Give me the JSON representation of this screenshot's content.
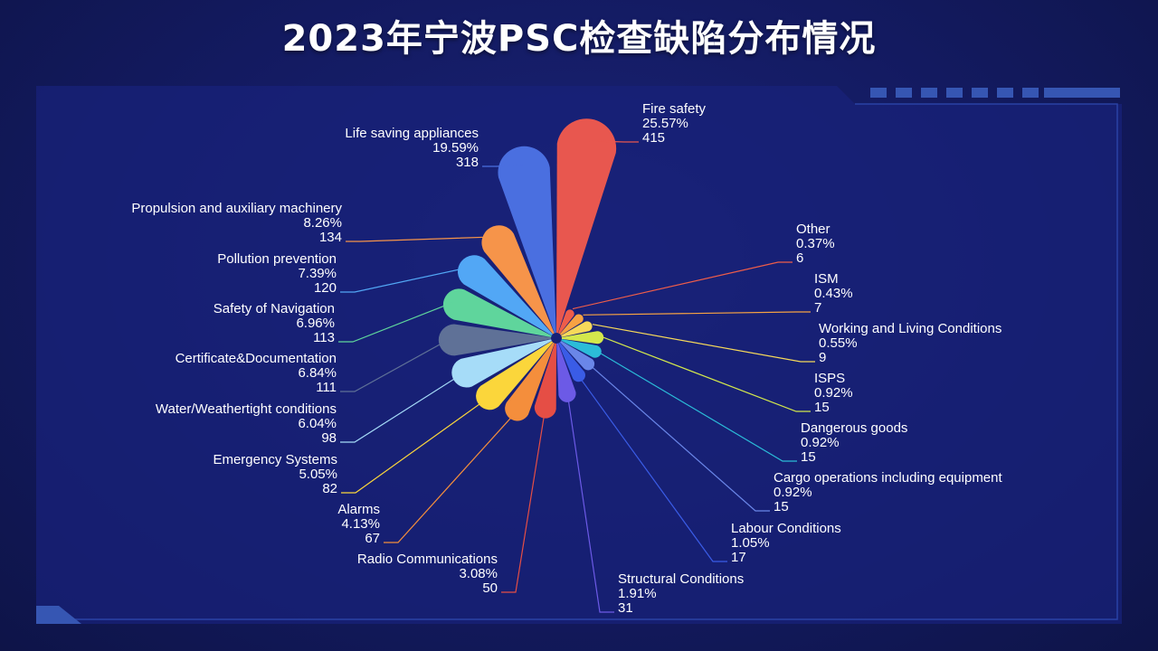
{
  "title": "2023年宁波PSC检查缺陷分布情况",
  "colors": {
    "background": "#131a60",
    "frame_fill": "#18217a",
    "frame_border": "#2f4bb3",
    "accent_blocks": "#3656b3"
  },
  "chart_data": {
    "type": "pie",
    "variant": "nightingale-rose",
    "title": "2023年宁波PSC检查缺陷分布情况",
    "legend": "none",
    "slices": [
      {
        "name": "Fire safety",
        "percent": "25.57%",
        "value": 415,
        "color": "#e8574f"
      },
      {
        "name": "Other",
        "percent": "0.37%",
        "value": 6,
        "color": "#ee5d4a"
      },
      {
        "name": "ISM",
        "percent": "0.43%",
        "value": 7,
        "color": "#f6a243"
      },
      {
        "name": "Working and Living Conditions",
        "percent": "0.55%",
        "value": 9,
        "color": "#f6d95a"
      },
      {
        "name": "ISPS",
        "percent": "0.92%",
        "value": 15,
        "color": "#d3e84c"
      },
      {
        "name": "Dangerous goods",
        "percent": "0.92%",
        "value": 15,
        "color": "#2bbcd8"
      },
      {
        "name": "Cargo operations including equipment",
        "percent": "0.92%",
        "value": 15,
        "color": "#6a86e8"
      },
      {
        "name": "Labour Conditions",
        "percent": "1.05%",
        "value": 17,
        "color": "#3a5ce6"
      },
      {
        "name": "Structural Conditions",
        "percent": "1.91%",
        "value": 31,
        "color": "#6c5ae6"
      },
      {
        "name": "Radio Communications",
        "percent": "3.08%",
        "value": 50,
        "color": "#e54e45"
      },
      {
        "name": "Alarms",
        "percent": "4.13%",
        "value": 67,
        "color": "#f48e3c"
      },
      {
        "name": "Emergency Systems",
        "percent": "5.05%",
        "value": 82,
        "color": "#fbd63b"
      },
      {
        "name": "Water/Weathertight conditions",
        "percent": "6.04%",
        "value": 98,
        "color": "#a6dcf8"
      },
      {
        "name": "Certificate&Documentation",
        "percent": "6.84%",
        "value": 111,
        "color": "#5f7197"
      },
      {
        "name": "Safety of Navigation",
        "percent": "6.96%",
        "value": 113,
        "color": "#5fd59c"
      },
      {
        "name": "Pollution prevention",
        "percent": "7.39%",
        "value": 120,
        "color": "#52a7f5"
      },
      {
        "name": "Propulsion and auxiliary machinery",
        "percent": "8.26%",
        "value": 134,
        "color": "#f6944a"
      },
      {
        "name": "Life saving appliances",
        "percent": "19.59%",
        "value": 318,
        "color": "#4a6fe0"
      }
    ]
  }
}
